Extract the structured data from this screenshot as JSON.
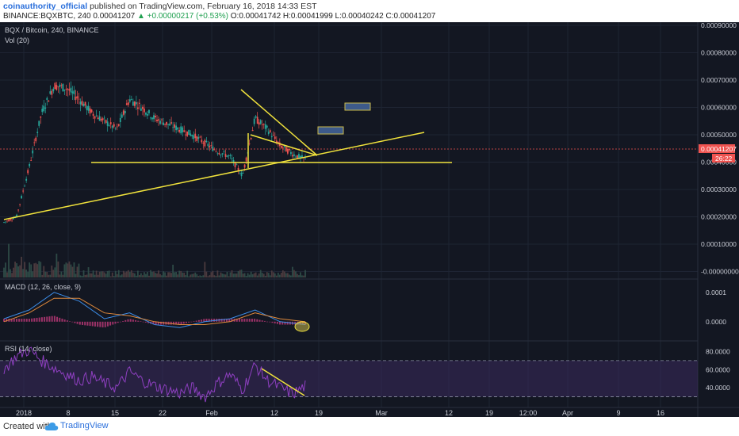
{
  "header": {
    "author": "coinauthority_official",
    "published_text": "published on TradingView.com, February 16, 2018 14:33 EST",
    "symbol_line": "BINANCE:BQXBTC, 240",
    "price": "0.00041207",
    "change": "▲ +0.00000217 (+0.53%)",
    "ohlc": "O:0.00041742 H:0.00041999 L:0.00040242 C:0.00041207"
  },
  "chart_data": [
    {
      "type": "line",
      "title": "BQX / Bitcoin, 240, BINANCE",
      "subtitle": "Vol (20)",
      "x_ticks": [
        "2018",
        "8",
        "15",
        "22",
        "Feb",
        "12",
        "19",
        "Mar",
        "12",
        "19",
        "12:00",
        "Apr",
        "9",
        "16"
      ],
      "y_ticks": [
        "0.00090000",
        "0.00080000",
        "0.00070000",
        "0.00060000",
        "0.00050000",
        "0.00040000",
        "0.00030000",
        "0.00020000",
        "0.00010000",
        "-0.00000000"
      ],
      "ylim": [
        -1e-05,
        0.0009
      ],
      "price_label": "0.00041207",
      "countdown_label": "26:22",
      "series": [
        {
          "x": [
            0,
            2,
            4,
            6,
            8,
            10,
            12,
            14,
            16,
            18,
            20,
            22,
            24,
            26,
            28,
            30,
            32,
            34,
            36,
            38,
            40,
            42,
            44,
            46,
            48
          ],
          "values": [
            0.00018,
            0.0002,
            0.00038,
            0.00058,
            0.00068,
            0.00067,
            0.00063,
            0.00058,
            0.00055,
            0.00052,
            0.00063,
            0.0006,
            0.00056,
            0.00054,
            0.00052,
            0.0005,
            0.00047,
            0.00044,
            0.00042,
            0.00035,
            0.00056,
            0.00052,
            0.00046,
            0.00043,
            0.00041
          ]
        }
      ],
      "annotations": {
        "support_level": 0.00036,
        "target_zones": [
          [
            0.00048,
            0.0005
          ],
          [
            0.00057,
            0.00059
          ]
        ]
      }
    },
    {
      "type": "line",
      "title": "MACD (12, 26, close, 9)",
      "y_ticks": [
        "0.0001",
        "0.0000"
      ],
      "ylim": [
        -6e-05,
        0.00014
      ],
      "series": [
        {
          "x": [
            0,
            4,
            8,
            12,
            16,
            20,
            24,
            28,
            32,
            36,
            40,
            44,
            48
          ],
          "values": [
            1e-05,
            4e-05,
            0.0001,
            7e-05,
            1e-05,
            3e-05,
            -1e-05,
            -2e-05,
            0.0,
            1e-05,
            4e-05,
            0.0,
            -1e-05
          ]
        },
        {
          "x": [
            0,
            4,
            8,
            12,
            16,
            20,
            24,
            28,
            32,
            36,
            40,
            44,
            48
          ],
          "values": [
            0.0,
            3e-05,
            8e-05,
            8e-05,
            3e-05,
            2e-05,
            0.0,
            -1e-05,
            -1e-05,
            0.0,
            3e-05,
            1e-05,
            0.0
          ]
        }
      ]
    },
    {
      "type": "line",
      "title": "RSI (14, close)",
      "y_ticks": [
        "80.0000",
        "60.0000",
        "40.0000"
      ],
      "ylim": [
        20,
        90
      ],
      "bands": [
        70,
        30
      ],
      "series": [
        {
          "x": [
            0,
            2,
            4,
            6,
            8,
            10,
            12,
            14,
            16,
            18,
            20,
            22,
            24,
            26,
            28,
            30,
            32,
            34,
            36,
            38,
            40,
            42,
            44,
            46,
            48
          ],
          "values": [
            60,
            75,
            82,
            70,
            62,
            55,
            48,
            52,
            45,
            40,
            58,
            48,
            42,
            38,
            34,
            40,
            30,
            45,
            55,
            38,
            65,
            48,
            40,
            33,
            42
          ]
        }
      ]
    }
  ],
  "footer": {
    "created_with": "Created with",
    "brand": "TradingView"
  },
  "colors": {
    "background": "#131722",
    "grid": "#1e2433",
    "annotation": "#f0e23c",
    "candle_up": "#26a69a",
    "candle_down": "#ef5350"
  }
}
